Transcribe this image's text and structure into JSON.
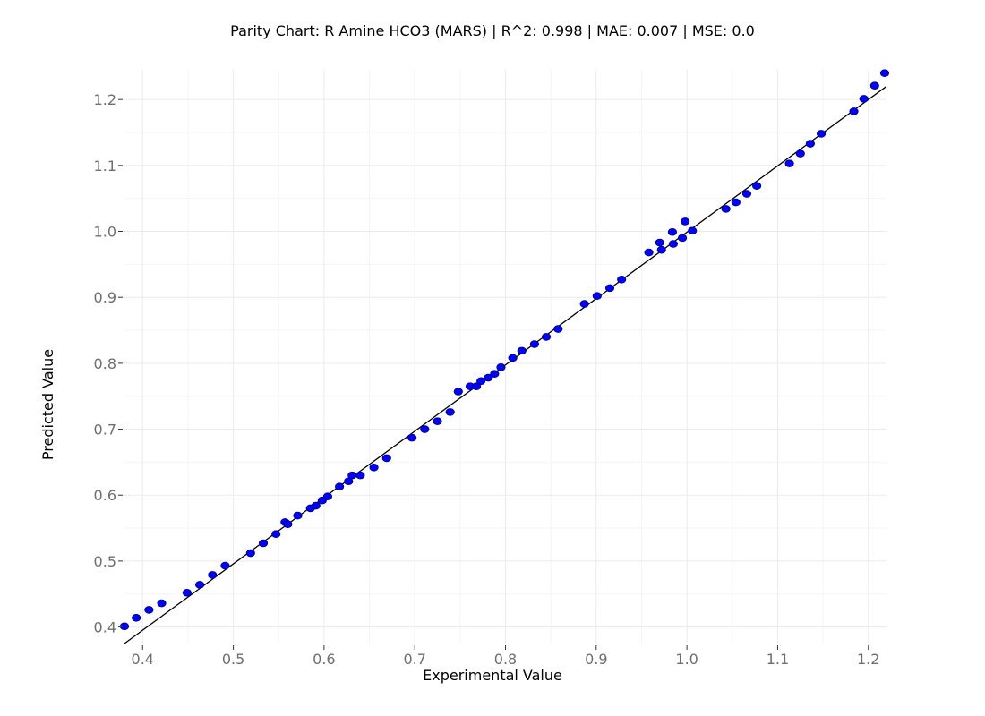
{
  "chart_data": {
    "type": "scatter",
    "title": "Parity Chart: R Amine HCO3 (MARS) | R^2: 0.998 | MAE: 0.007 | MSE: 0.0",
    "xlabel": "Experimental Value",
    "ylabel": "Predicted Value",
    "xlim": [
      0.38,
      1.22
    ],
    "ylim": [
      0.375,
      1.245
    ],
    "xticks": [
      0.4,
      0.5,
      0.6,
      0.7,
      0.8,
      0.9,
      1.0,
      1.1,
      1.2
    ],
    "xtick_labels": [
      "0.4",
      "0.5",
      "0.6",
      "0.7",
      "0.8",
      "0.9",
      "1.0",
      "1.1",
      "1.2"
    ],
    "yticks": [
      0.4,
      0.5,
      0.6,
      0.7,
      0.8,
      0.9,
      1.0,
      1.1,
      1.2
    ],
    "ytick_labels": [
      "0.4",
      "0.5",
      "0.6",
      "0.7",
      "0.8",
      "0.9",
      "1.0",
      "1.1",
      "1.2"
    ],
    "grid": true,
    "reference_line": {
      "from": [
        0.38,
        0.375
      ],
      "to": [
        1.22,
        1.22
      ]
    },
    "colors": {
      "points": "#0000ff",
      "point_outline": "#00008b",
      "line": "#000000"
    },
    "points": [
      [
        0.38,
        0.401
      ],
      [
        0.393,
        0.414
      ],
      [
        0.407,
        0.426
      ],
      [
        0.421,
        0.436
      ],
      [
        0.449,
        0.452
      ],
      [
        0.463,
        0.464
      ],
      [
        0.477,
        0.479
      ],
      [
        0.491,
        0.493
      ],
      [
        0.519,
        0.512
      ],
      [
        0.533,
        0.527
      ],
      [
        0.547,
        0.541
      ],
      [
        0.557,
        0.559
      ],
      [
        0.56,
        0.556
      ],
      [
        0.571,
        0.569
      ],
      [
        0.585,
        0.58
      ],
      [
        0.591,
        0.584
      ],
      [
        0.598,
        0.592
      ],
      [
        0.604,
        0.598
      ],
      [
        0.617,
        0.613
      ],
      [
        0.627,
        0.621
      ],
      [
        0.631,
        0.63
      ],
      [
        0.64,
        0.63
      ],
      [
        0.655,
        0.642
      ],
      [
        0.669,
        0.656
      ],
      [
        0.697,
        0.687
      ],
      [
        0.711,
        0.7
      ],
      [
        0.725,
        0.712
      ],
      [
        0.739,
        0.726
      ],
      [
        0.748,
        0.757
      ],
      [
        0.761,
        0.765
      ],
      [
        0.768,
        0.765
      ],
      [
        0.773,
        0.773
      ],
      [
        0.781,
        0.778
      ],
      [
        0.788,
        0.784
      ],
      [
        0.795,
        0.794
      ],
      [
        0.808,
        0.808
      ],
      [
        0.818,
        0.819
      ],
      [
        0.832,
        0.829
      ],
      [
        0.845,
        0.84
      ],
      [
        0.858,
        0.852
      ],
      [
        0.887,
        0.89
      ],
      [
        0.901,
        0.902
      ],
      [
        0.915,
        0.914
      ],
      [
        0.928,
        0.927
      ],
      [
        0.958,
        0.968
      ],
      [
        0.97,
        0.983
      ],
      [
        0.972,
        0.972
      ],
      [
        0.984,
        0.999
      ],
      [
        0.985,
        0.981
      ],
      [
        0.995,
        0.99
      ],
      [
        0.998,
        1.015
      ],
      [
        1.006,
        1.001
      ],
      [
        1.043,
        1.034
      ],
      [
        1.054,
        1.044
      ],
      [
        1.066,
        1.057
      ],
      [
        1.077,
        1.069
      ],
      [
        1.113,
        1.103
      ],
      [
        1.125,
        1.118
      ],
      [
        1.136,
        1.133
      ],
      [
        1.148,
        1.148
      ],
      [
        1.184,
        1.182
      ],
      [
        1.195,
        1.201
      ],
      [
        1.207,
        1.221
      ],
      [
        1.218,
        1.24
      ]
    ]
  }
}
